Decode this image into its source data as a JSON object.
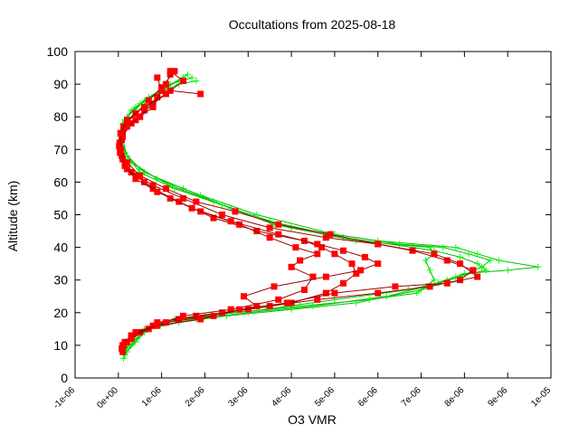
{
  "chart_data": {
    "type": "line",
    "title": "Occultations from 2025-08-18",
    "xlabel": "O3 VMR",
    "ylabel": "Altitude (km)",
    "xlim": [
      -1e-06,
      1e-05
    ],
    "ylim": [
      0,
      100
    ],
    "x_tick_labels": [
      "-1e-06",
      "0e+00",
      "1e-06",
      "2e-06",
      "3e-06",
      "4e-06",
      "5e-06",
      "6e-06",
      "7e-06",
      "8e-06",
      "9e-06",
      "1e-05"
    ],
    "x_tick_values": [
      -1e-06,
      0,
      1e-06,
      2e-06,
      3e-06,
      4e-06,
      5e-06,
      6e-06,
      7e-06,
      8e-06,
      9e-06,
      1e-05
    ],
    "y_tick_labels": [
      "0",
      "10",
      "20",
      "30",
      "40",
      "50",
      "60",
      "70",
      "80",
      "90",
      "100"
    ],
    "y_tick_values": [
      0,
      10,
      20,
      30,
      40,
      50,
      60,
      70,
      80,
      90,
      100
    ],
    "grid": false,
    "legend": "none",
    "series": [
      {
        "color": "#00ff00",
        "marker": "plus",
        "line_color": "#00c000",
        "profiles": [
          [
            [
              1.2e-07,
              6
            ],
            [
              2e-07,
              9
            ],
            [
              4e-07,
              12
            ],
            [
              7e-07,
              15
            ],
            [
              1.4e-06,
              17
            ],
            [
              2.5e-06,
              19
            ],
            [
              4e-06,
              21
            ],
            [
              5.5e-06,
              23
            ],
            [
              7e-06,
              27
            ],
            [
              7.6e-06,
              30
            ],
            [
              8e-06,
              32
            ],
            [
              9e-06,
              33
            ],
            [
              9.7e-06,
              34
            ],
            [
              8.8e-06,
              36
            ],
            [
              8.3e-06,
              38
            ],
            [
              7.8e-06,
              40
            ],
            [
              6e-06,
              42
            ],
            [
              4e-06,
              46
            ],
            [
              2.6e-06,
              52
            ],
            [
              1.5e-06,
              58
            ],
            [
              6e-07,
              63
            ],
            [
              2e-07,
              68
            ],
            [
              5e-08,
              73
            ],
            [
              1e-07,
              78
            ],
            [
              3e-07,
              82
            ],
            [
              7e-07,
              86
            ],
            [
              1.2e-06,
              90
            ],
            [
              1.7e-06,
              92
            ]
          ],
          [
            [
              1.5e-07,
              7
            ],
            [
              3e-07,
              10
            ],
            [
              5e-07,
              13
            ],
            [
              9e-07,
              16
            ],
            [
              1.8e-06,
              18
            ],
            [
              3e-06,
              20
            ],
            [
              4.5e-06,
              22
            ],
            [
              6.2e-06,
              25
            ],
            [
              7.1e-06,
              28
            ],
            [
              7.8e-06,
              31
            ],
            [
              8.5e-06,
              33
            ],
            [
              8.3e-06,
              35
            ],
            [
              7.9e-06,
              37
            ],
            [
              7.3e-06,
              39
            ],
            [
              6.8e-06,
              40
            ],
            [
              5.2e-06,
              43
            ],
            [
              3.5e-06,
              48
            ],
            [
              2.2e-06,
              54
            ],
            [
              1.2e-06,
              59
            ],
            [
              5e-07,
              64
            ],
            [
              1.5e-07,
              69
            ],
            [
              5e-08,
              74
            ],
            [
              1.5e-07,
              79
            ],
            [
              4e-07,
              83
            ],
            [
              9e-07,
              87
            ],
            [
              1.4e-06,
              90
            ],
            [
              1.8e-06,
              91
            ]
          ],
          [
            [
              2e-07,
              8
            ],
            [
              4e-07,
              11
            ],
            [
              6e-07,
              14
            ],
            [
              1.1e-06,
              17
            ],
            [
              2e-06,
              19
            ],
            [
              3.4e-06,
              21
            ],
            [
              5e-06,
              24
            ],
            [
              6.7e-06,
              27
            ],
            [
              7.4e-06,
              29
            ],
            [
              7.9e-06,
              31
            ],
            [
              8.4e-06,
              34
            ],
            [
              8.6e-06,
              36
            ],
            [
              8.1e-06,
              38
            ],
            [
              7.5e-06,
              40
            ],
            [
              6.5e-06,
              41
            ],
            [
              5e-06,
              44
            ],
            [
              3.2e-06,
              50
            ],
            [
              1.9e-06,
              56
            ],
            [
              9e-07,
              61
            ],
            [
              3e-07,
              66
            ],
            [
              1e-07,
              71
            ],
            [
              1e-07,
              76
            ],
            [
              2e-07,
              80
            ],
            [
              6e-07,
              85
            ],
            [
              1.1e-06,
              89
            ],
            [
              1.6e-06,
              93
            ]
          ],
          [
            [
              1.8e-07,
              9
            ],
            [
              3e-07,
              12
            ],
            [
              6e-07,
              15
            ],
            [
              1.3e-06,
              18
            ],
            [
              2.7e-06,
              20
            ],
            [
              4.2e-06,
              22
            ],
            [
              5.8e-06,
              24
            ],
            [
              6.9e-06,
              26
            ],
            [
              7.3e-06,
              30
            ],
            [
              7.2e-06,
              33
            ],
            [
              7.1e-06,
              36
            ],
            [
              7.3e-06,
              38
            ],
            [
              7.2e-06,
              40
            ],
            [
              5.5e-06,
              42
            ],
            [
              3.6e-06,
              47
            ],
            [
              2.4e-06,
              53
            ],
            [
              1.3e-06,
              58
            ],
            [
              5e-07,
              63
            ],
            [
              2e-07,
              68
            ],
            [
              1e-07,
              73
            ],
            [
              2e-07,
              78
            ],
            [
              5e-07,
              84
            ],
            [
              1e-06,
              88
            ],
            [
              1.5e-06,
              92
            ]
          ]
        ]
      },
      {
        "color": "#ff0000",
        "marker": "square",
        "line_color": "#a00000",
        "profiles": [
          [
            [
              1e-07,
              8
            ],
            [
              2e-07,
              11
            ],
            [
              5e-07,
              14
            ],
            [
              9e-07,
              17
            ],
            [
              1.8e-06,
              19
            ],
            [
              3e-06,
              21
            ],
            [
              4e-06,
              23
            ],
            [
              4.8e-06,
              26
            ],
            [
              5.2e-06,
              29
            ],
            [
              5.5e-06,
              32
            ],
            [
              5.4e-06,
              35
            ],
            [
              5e-06,
              38
            ],
            [
              4.7e-06,
              40
            ],
            [
              4.3e-06,
              42
            ],
            [
              3.2e-06,
              45
            ],
            [
              2.2e-06,
              49
            ],
            [
              1.4e-06,
              54
            ],
            [
              8e-07,
              58
            ],
            [
              4e-07,
              62
            ],
            [
              1.5e-07,
              66
            ],
            [
              5e-08,
              70
            ],
            [
              1e-07,
              74
            ],
            [
              3e-07,
              78
            ],
            [
              6e-07,
              82
            ],
            [
              9e-07,
              86
            ],
            [
              1.1e-06,
              90
            ],
            [
              1.2e-06,
              93
            ]
          ],
          [
            [
              8e-08,
              9
            ],
            [
              3e-07,
              12
            ],
            [
              7e-07,
              15
            ],
            [
              1.4e-06,
              18
            ],
            [
              2.4e-06,
              20
            ],
            [
              3.5e-06,
              22
            ],
            [
              4.6e-06,
              24
            ],
            [
              6e-06,
              26
            ],
            [
              7.2e-06,
              28
            ],
            [
              7.9e-06,
              30
            ],
            [
              8.2e-06,
              33
            ],
            [
              7.6e-06,
              36
            ],
            [
              6.8e-06,
              39
            ],
            [
              6e-06,
              41
            ],
            [
              4.8e-06,
              43
            ],
            [
              3.5e-06,
              46
            ],
            [
              2.4e-06,
              50
            ],
            [
              1.5e-06,
              55
            ],
            [
              8e-07,
              59
            ],
            [
              3e-07,
              63
            ],
            [
              1e-07,
              67
            ],
            [
              2e-08,
              71
            ],
            [
              1e-07,
              75
            ],
            [
              4e-07,
              79
            ],
            [
              8e-07,
              84
            ],
            [
              1.2e-06,
              88
            ],
            [
              1.9e-06,
              87
            ]
          ],
          [
            [
              1.2e-07,
              10
            ],
            [
              3e-07,
              13
            ],
            [
              8e-07,
              16
            ],
            [
              1.5e-06,
              19
            ],
            [
              2.6e-06,
              21
            ],
            [
              3.7e-06,
              24
            ],
            [
              4.3e-06,
              27
            ],
            [
              4.5e-06,
              31
            ],
            [
              4e-06,
              34
            ],
            [
              4.2e-06,
              36
            ],
            [
              4.6e-06,
              38
            ],
            [
              4.1e-06,
              40
            ],
            [
              3.5e-06,
              43
            ],
            [
              2.8e-06,
              47
            ],
            [
              1.9e-06,
              51
            ],
            [
              1.2e-06,
              55
            ],
            [
              6e-07,
              60
            ],
            [
              2e-07,
              64
            ],
            [
              8e-08,
              68
            ],
            [
              3e-08,
              72
            ],
            [
              1.2e-07,
              77
            ],
            [
              4e-07,
              81
            ],
            [
              7e-07,
              85
            ],
            [
              1e-06,
              89
            ],
            [
              1.3e-06,
              94
            ]
          ],
          [
            [
              1.5e-07,
              11
            ],
            [
              4e-07,
              14
            ],
            [
              1.1e-06,
              17
            ],
            [
              2.2e-06,
              19
            ],
            [
              3.2e-06,
              22
            ],
            [
              2.9e-06,
              25
            ],
            [
              3.6e-06,
              28
            ],
            [
              4.8e-06,
              31
            ],
            [
              5.6e-06,
              33
            ],
            [
              6e-06,
              35
            ],
            [
              5.7e-06,
              37
            ],
            [
              5.2e-06,
              39
            ],
            [
              4.6e-06,
              41
            ],
            [
              3.7e-06,
              44
            ],
            [
              2.6e-06,
              48
            ],
            [
              1.7e-06,
              52
            ],
            [
              9e-07,
              57
            ],
            [
              4e-07,
              61
            ],
            [
              1.5e-07,
              65
            ],
            [
              4e-08,
              69
            ],
            [
              8e-08,
              73
            ],
            [
              2e-07,
              77
            ],
            [
              5e-07,
              80
            ],
            [
              8e-07,
              83
            ],
            [
              1e-06,
              88
            ],
            [
              9e-07,
              92
            ]
          ],
          [
            [
              1e-07,
              10
            ],
            [
              3e-07,
              13
            ],
            [
              9e-07,
              16
            ],
            [
              1.9e-06,
              18
            ],
            [
              2.8e-06,
              21
            ],
            [
              3.9e-06,
              23
            ],
            [
              5e-06,
              26
            ],
            [
              6.4e-06,
              28
            ],
            [
              7.6e-06,
              29
            ],
            [
              8.3e-06,
              31
            ],
            [
              7.9e-06,
              35
            ],
            [
              7.3e-06,
              38
            ],
            [
              6e-06,
              41
            ],
            [
              4.9e-06,
              44
            ],
            [
              3.7e-06,
              47
            ],
            [
              2.7e-06,
              51
            ],
            [
              1.8e-06,
              54
            ],
            [
              1.1e-06,
              58
            ],
            [
              5e-07,
              62
            ],
            [
              2e-07,
              66
            ],
            [
              5e-08,
              70
            ],
            [
              5e-08,
              75
            ],
            [
              2e-07,
              79
            ],
            [
              6e-07,
              83
            ],
            [
              1.1e-06,
              87
            ],
            [
              1.5e-06,
              91
            ],
            [
              1.2e-06,
              94
            ]
          ]
        ]
      }
    ]
  }
}
